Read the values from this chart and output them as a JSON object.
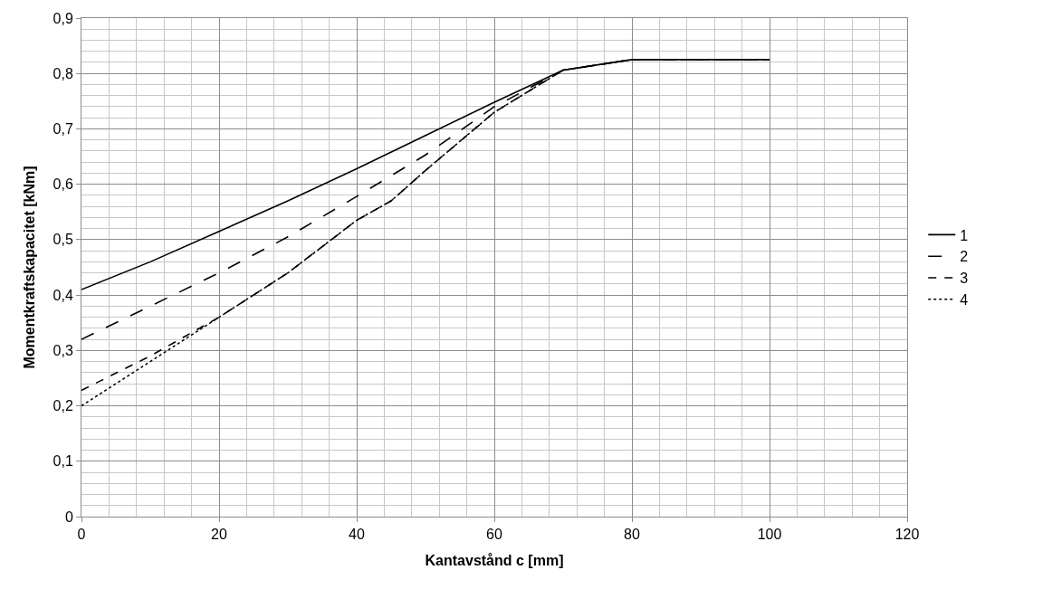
{
  "chart_data": {
    "type": "line",
    "xlabel": "Kantavstånd c [mm]",
    "ylabel": "Momentkraftskapacitet [kNm]",
    "xlim": [
      0,
      120
    ],
    "xticks": [
      0,
      20,
      40,
      60,
      80,
      100,
      120
    ],
    "ylim": [
      0,
      0.9
    ],
    "yticks": [
      0,
      {
        "value": 0.1,
        "label": "0,1"
      },
      {
        "value": 0.2,
        "label": "0,2"
      },
      {
        "value": 0.3,
        "label": "0,3"
      },
      {
        "value": 0.4,
        "label": "0,4"
      },
      {
        "value": 0.5,
        "label": "0,5"
      },
      {
        "value": 0.6,
        "label": "0,6"
      },
      {
        "value": 0.7,
        "label": "0,7"
      },
      {
        "value": 0.8,
        "label": "0,8"
      },
      {
        "value": 0.9,
        "label": "0,9"
      }
    ],
    "grid": true,
    "legend": "right",
    "marker": "none",
    "series": [
      {
        "name": "1",
        "color": "#000000",
        "line_style": "solid",
        "x": [
          0,
          10,
          20,
          30,
          40,
          50,
          60,
          70,
          80,
          90,
          100
        ],
        "values": [
          0.41,
          0.46,
          0.515,
          0.57,
          0.628,
          0.688,
          0.748,
          0.806,
          0.825,
          0.825,
          0.825
        ]
      },
      {
        "name": "2",
        "color": "#000000",
        "line_style": "dashed",
        "x": [
          0,
          10,
          20,
          30,
          40,
          50,
          60,
          70,
          80,
          90,
          100
        ],
        "values": [
          0.32,
          0.38,
          0.44,
          0.505,
          0.578,
          0.653,
          0.74,
          0.806,
          0.825,
          0.825,
          0.825
        ]
      },
      {
        "name": "3",
        "color": "#000000",
        "line_style": "dashed",
        "x": [
          0,
          10,
          20,
          30,
          40,
          45,
          50,
          60,
          70,
          80,
          90,
          100
        ],
        "values": [
          0.228,
          0.29,
          0.36,
          0.44,
          0.535,
          0.57,
          0.625,
          0.73,
          0.806,
          0.825,
          0.825,
          0.825
        ]
      },
      {
        "name": "4",
        "color": "#000000",
        "line_style": "dotted",
        "x": [
          0,
          5,
          10,
          15,
          20,
          30,
          40,
          45,
          50,
          60,
          70,
          80,
          90,
          100
        ],
        "values": [
          0.2,
          0.24,
          0.28,
          0.32,
          0.36,
          0.44,
          0.535,
          0.57,
          0.625,
          0.73,
          0.806,
          0.825,
          0.825,
          0.825
        ]
      }
    ]
  }
}
